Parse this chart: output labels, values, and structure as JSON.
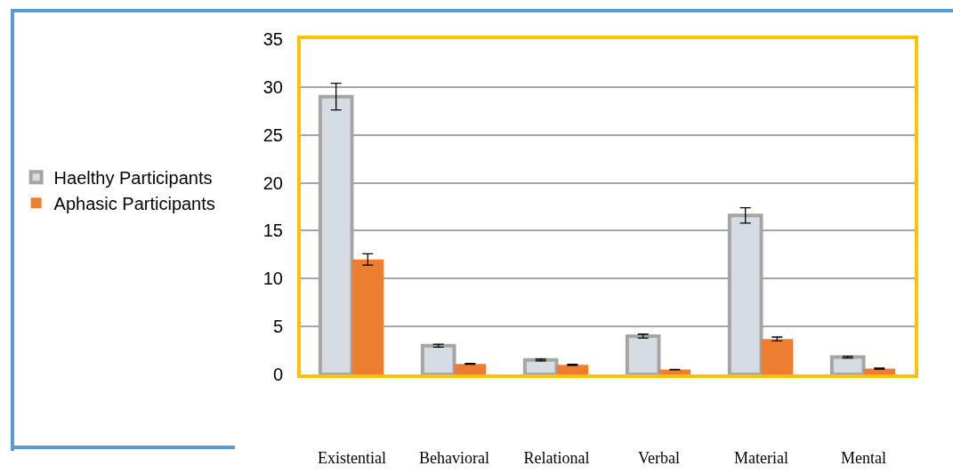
{
  "chart_data": {
    "type": "bar",
    "categories": [
      "Existential",
      "Behavioral",
      "Relational",
      "Verbal",
      "Material",
      "Mental"
    ],
    "series": [
      {
        "name": "Haelthy Participants",
        "color": "#d6dce4",
        "values": [
          29,
          3,
          1.5,
          4,
          16.6,
          1.8
        ],
        "errors": [
          1.4,
          0.15,
          0.1,
          0.2,
          0.8,
          0.1
        ]
      },
      {
        "name": "Aphasic Participants",
        "color": "#ed7d31",
        "values": [
          12,
          1.1,
          1,
          0.5,
          3.7,
          0.6
        ],
        "errors": [
          0.6,
          0.05,
          0.05,
          0.03,
          0.2,
          0.05
        ]
      }
    ],
    "ylim": [
      0,
      35
    ],
    "yticks": [
      0,
      5,
      10,
      15,
      20,
      25,
      30,
      35
    ],
    "grid": "y",
    "legend": "left"
  }
}
